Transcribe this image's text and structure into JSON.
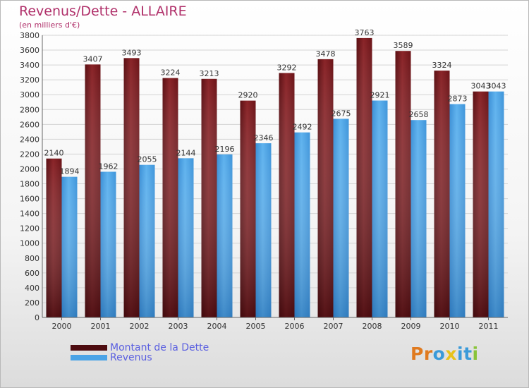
{
  "header": {
    "title": "Revenus/Dette - ALLAIRE",
    "subtitle": "(en milliers d'€)"
  },
  "brand": {
    "text": "Proxiti",
    "letter_colors": [
      "#e07a1f",
      "#e07a1f",
      "#3a9ad9",
      "#e8c21a",
      "#3a9ad9",
      "#3a9ad9",
      "#89c43a"
    ]
  },
  "colors": {
    "debt": "#7a1a1e",
    "debt_dark": "#4d0c10",
    "revenue": "#4ba3e6",
    "revenue_dark": "#2f7fc4"
  },
  "chart_data": {
    "type": "bar",
    "categories": [
      "2000",
      "2001",
      "2002",
      "2003",
      "2004",
      "2005",
      "2006",
      "2007",
      "2008",
      "2009",
      "2010",
      "2011"
    ],
    "series": [
      {
        "name": "Montant de la Dette",
        "values": [
          2140,
          3407,
          3493,
          3224,
          3213,
          2920,
          3292,
          3478,
          3763,
          3589,
          3324,
          3043
        ]
      },
      {
        "name": "Revenus",
        "values": [
          1894,
          1962,
          2055,
          2144,
          2196,
          2346,
          2492,
          2675,
          2921,
          2658,
          2873,
          3043
        ]
      }
    ],
    "ylim": [
      0,
      3800
    ],
    "ytick_step": 200,
    "grid": true,
    "legend": "bottom-left"
  }
}
